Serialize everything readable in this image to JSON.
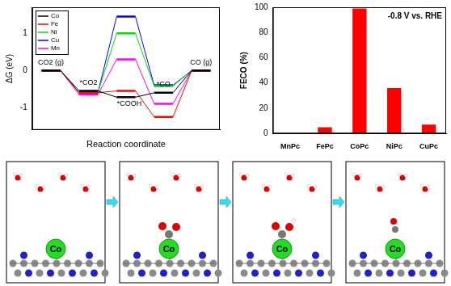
{
  "chart_data": [
    {
      "type": "line",
      "x_label": "Reaction coordinate",
      "y_label": "ΔG (eV)",
      "categories": [
        "CO2 (g)",
        "*CO2",
        "*COOH",
        "*CO",
        "CO (g)"
      ],
      "series": [
        {
          "name": "Co",
          "color": "#000000",
          "values": [
            0,
            -0.55,
            -0.72,
            -0.6,
            0
          ]
        },
        {
          "name": "Fe",
          "color": "#ff0000",
          "values": [
            0,
            -0.6,
            -0.55,
            -1.25,
            0
          ]
        },
        {
          "name": "Ni",
          "color": "#00dd00",
          "values": [
            0,
            -0.6,
            1.0,
            -0.42,
            0
          ]
        },
        {
          "name": "Cu",
          "color": "#0000ff",
          "values": [
            0,
            -0.6,
            1.45,
            -0.4,
            0
          ]
        },
        {
          "name": "Mn",
          "color": "#ff00ff",
          "values": [
            0,
            -0.65,
            0.3,
            -0.9,
            0
          ]
        }
      ],
      "ylim": [
        -1.6,
        1.7
      ],
      "yticks": [
        -1,
        0,
        1
      ],
      "legend": "upper left",
      "tick_labels": "y",
      "grid": false
    },
    {
      "type": "bar",
      "y_label": "FECO (%)",
      "annotation": "-0.8 V vs. RHE",
      "categories": [
        "MnPc",
        "FePc",
        "CoPc",
        "NiPc",
        "CuPc"
      ],
      "values": [
        0,
        5,
        99,
        36,
        7
      ],
      "color": "#ff0000",
      "ylim": [
        0,
        100
      ],
      "yticks": [
        0,
        20,
        40,
        60,
        80,
        100
      ],
      "grid": false
    }
  ],
  "snapshots": {
    "labels": [
      "Co",
      "Co",
      "Co",
      "Co"
    ]
  }
}
